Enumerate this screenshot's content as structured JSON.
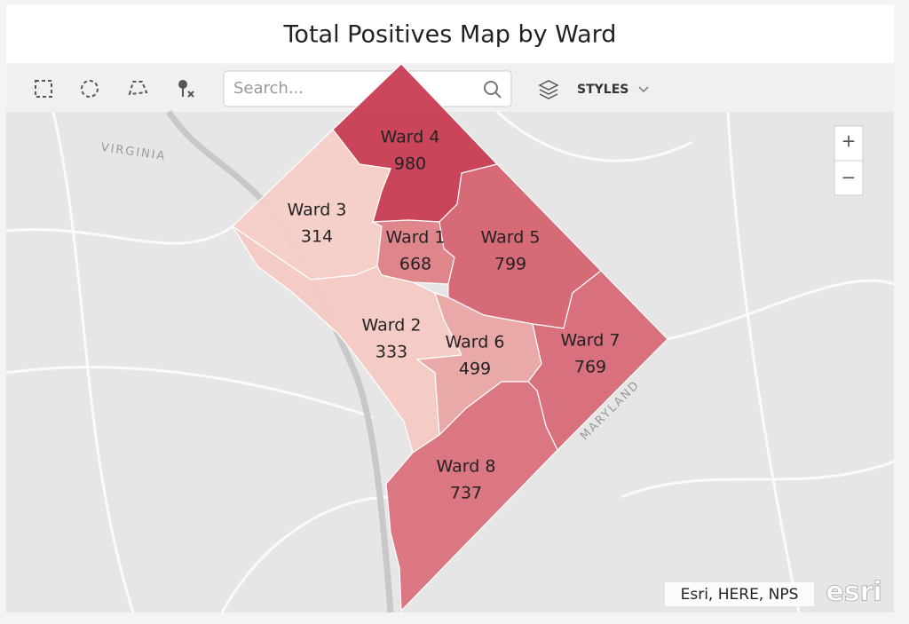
{
  "header": {
    "title": "Total Positives Map by Ward"
  },
  "toolbar": {
    "search_placeholder": "Search...",
    "styles_label": "STYLES"
  },
  "zoom": {
    "in": "+",
    "out": "−"
  },
  "map_labels": [
    "VIRGINIA",
    "MARYLAND"
  ],
  "wards": [
    {
      "name": "Ward 4",
      "value": 980
    },
    {
      "name": "Ward 3",
      "value": 314
    },
    {
      "name": "Ward 1",
      "value": 668
    },
    {
      "name": "Ward 5",
      "value": 799
    },
    {
      "name": "Ward 2",
      "value": 333
    },
    {
      "name": "Ward 6",
      "value": 499
    },
    {
      "name": "Ward 7",
      "value": 769
    },
    {
      "name": "Ward 8",
      "value": 737
    }
  ],
  "attribution": "Esri, HERE, NPS",
  "logo": "esri"
}
